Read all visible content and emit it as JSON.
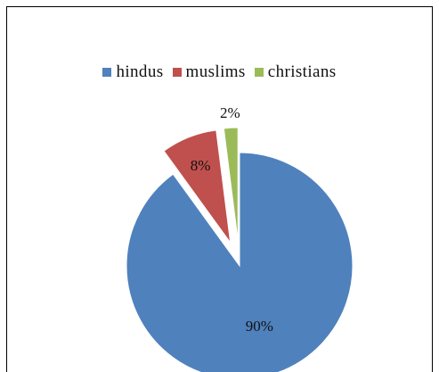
{
  "chart_data": {
    "type": "pie",
    "title": "",
    "categories": [
      "hindus",
      "muslims",
      "christians"
    ],
    "values": [
      90,
      8,
      2
    ],
    "data_labels": [
      "90%",
      "8%",
      "2%"
    ],
    "colors": [
      "#4f81bd",
      "#c0504d",
      "#9bbb59"
    ],
    "legend_position": "top",
    "exploded": [
      "muslims",
      "christians"
    ]
  }
}
